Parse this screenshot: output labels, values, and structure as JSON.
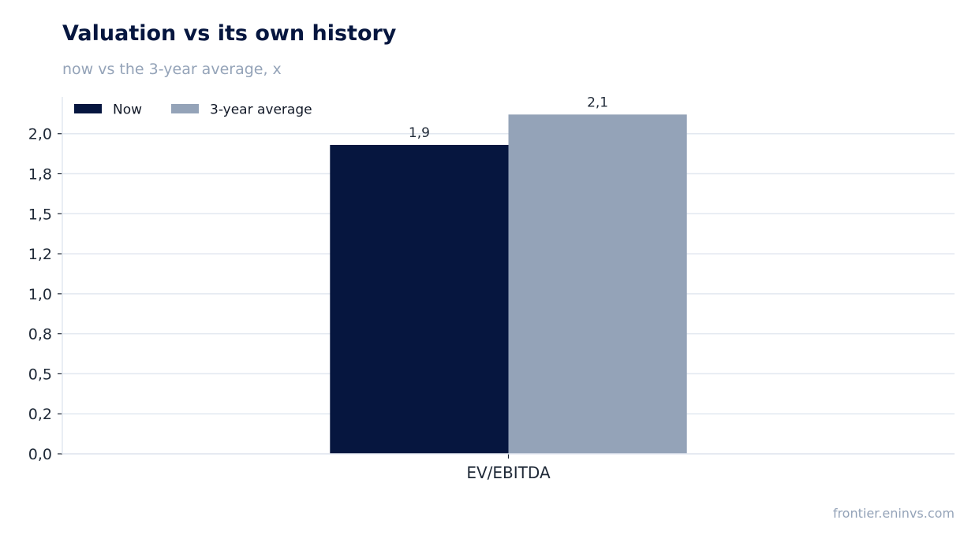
{
  "header": {
    "title": "Valuation vs its own history",
    "subtitle": "now vs the 3-year average, x"
  },
  "footer": {
    "source": "frontier.eninvs.com"
  },
  "colors": {
    "now": "#06163f",
    "average": "#94a3b8",
    "grid": "#e2e8f0",
    "axis_text": "#1f2937"
  },
  "chart_data": {
    "type": "bar",
    "categories": [
      "EV/EBITDA"
    ],
    "series": [
      {
        "name": "Now",
        "values": [
          1.93
        ],
        "label": "1,9"
      },
      {
        "name": "3-year average",
        "values": [
          2.12
        ],
        "label": "2,1"
      }
    ],
    "ylim": [
      0,
      2.23
    ],
    "yticks": [
      0,
      0.25,
      0.5,
      0.75,
      1.0,
      1.25,
      1.5,
      1.75,
      2.0
    ],
    "yticklabels": [
      "0,0",
      "0,2",
      "0,5",
      "0,8",
      "1,0",
      "1,2",
      "1,5",
      "1,8",
      "2,0"
    ],
    "grid": true,
    "legend": "top-left",
    "xlabel": "",
    "ylabel": ""
  }
}
